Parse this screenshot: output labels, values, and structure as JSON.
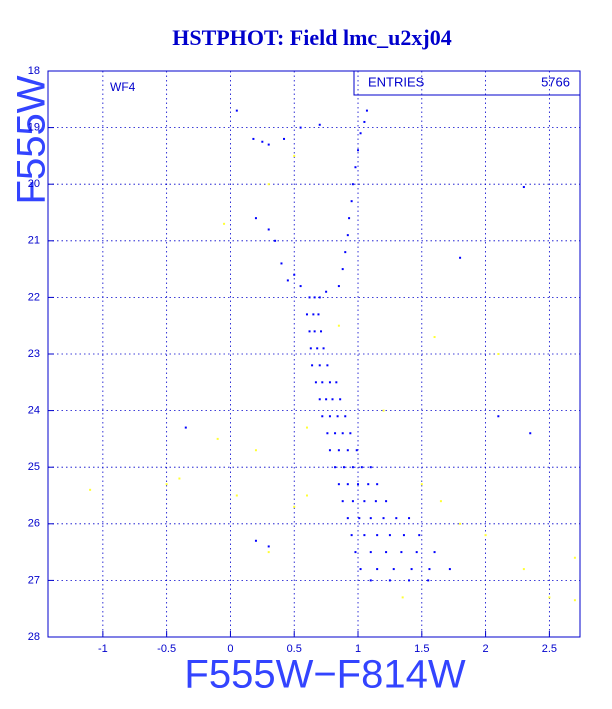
{
  "chart_data": {
    "type": "scatter",
    "title": "HSTPHOT: Field lmc_u2xj04",
    "panel_label": "WF4",
    "stats_label": "ENTRIES",
    "stats_value": 5766,
    "x_label": "F555W−F814W",
    "y_label": "F555W",
    "xlim": [
      -1.43,
      2.74
    ],
    "ylim": [
      28,
      18
    ],
    "xticks": [
      -1,
      -0.5,
      0,
      0.5,
      1,
      1.5,
      2,
      2.5
    ],
    "yticks": [
      18,
      19,
      20,
      21,
      22,
      23,
      24,
      25,
      26,
      27,
      28
    ],
    "grid": true,
    "series": [
      {
        "color": "#0000ff",
        "x": [
          0.62,
          0.66,
          0.7,
          0.6,
          0.65,
          0.69,
          0.62,
          0.66,
          0.71,
          0.63,
          0.68,
          0.73,
          0.64,
          0.7,
          0.76,
          0.67,
          0.72,
          0.78,
          0.83,
          0.7,
          0.75,
          0.8,
          0.86,
          0.72,
          0.78,
          0.84,
          0.9,
          0.76,
          0.82,
          0.88,
          0.94,
          0.78,
          0.85,
          0.92,
          0.99,
          0.82,
          0.89,
          0.96,
          1.03,
          1.1,
          0.85,
          0.92,
          1.0,
          1.08,
          1.15,
          0.88,
          0.96,
          1.05,
          1.14,
          1.22,
          0.92,
          1.01,
          1.1,
          1.2,
          1.3,
          1.4,
          0.95,
          1.05,
          1.15,
          1.25,
          1.36,
          1.48,
          0.98,
          1.1,
          1.22,
          1.34,
          1.46,
          1.6,
          1.02,
          1.15,
          1.28,
          1.42,
          1.56,
          1.72,
          1.1,
          1.25,
          1.4,
          1.55,
          0.55,
          0.5,
          0.45,
          0.75,
          0.85,
          0.88,
          0.9,
          0.92,
          0.93,
          0.95,
          0.96,
          0.98,
          1.0,
          1.02,
          1.05,
          1.07,
          0.4,
          0.35,
          0.3,
          0.18,
          0.25,
          0.3,
          0.42,
          0.55,
          0.7,
          0.05,
          -0.35,
          0.2,
          0.3,
          2.3,
          2.1,
          2.35,
          1.8,
          0.2
        ],
        "values": [
          22.0,
          22.0,
          22.0,
          22.3,
          22.3,
          22.3,
          22.6,
          22.6,
          22.6,
          22.9,
          22.9,
          22.9,
          23.2,
          23.2,
          23.2,
          23.5,
          23.5,
          23.5,
          23.5,
          23.8,
          23.8,
          23.8,
          23.8,
          24.1,
          24.1,
          24.1,
          24.1,
          24.4,
          24.4,
          24.4,
          24.4,
          24.7,
          24.7,
          24.7,
          24.7,
          25.0,
          25.0,
          25.0,
          25.0,
          25.0,
          25.3,
          25.3,
          25.3,
          25.3,
          25.3,
          25.6,
          25.6,
          25.6,
          25.6,
          25.6,
          25.9,
          25.9,
          25.9,
          25.9,
          25.9,
          25.9,
          26.2,
          26.2,
          26.2,
          26.2,
          26.2,
          26.2,
          26.5,
          26.5,
          26.5,
          26.5,
          26.5,
          26.5,
          26.8,
          26.8,
          26.8,
          26.8,
          26.8,
          26.8,
          27.0,
          27.0,
          27.0,
          27.0,
          21.8,
          21.6,
          21.7,
          21.9,
          21.8,
          21.5,
          21.2,
          20.9,
          20.6,
          20.3,
          20.0,
          19.7,
          19.4,
          19.1,
          18.9,
          18.7,
          21.4,
          21.0,
          20.8,
          19.2,
          19.25,
          19.3,
          19.2,
          19.0,
          18.95,
          18.7,
          24.3,
          26.3,
          26.4,
          20.05,
          24.1,
          24.4,
          21.3,
          20.6
        ]
      },
      {
        "color": "#ffff33",
        "x": [
          -1.1,
          -0.5,
          -0.4,
          0.05,
          0.3,
          0.5,
          0.6,
          1.2,
          1.5,
          1.8,
          2.0,
          2.3,
          2.5,
          2.7,
          2.1,
          1.6,
          0.3,
          0.5,
          -0.05,
          0.85,
          2.7,
          1.35,
          0.2,
          -0.1,
          0.6,
          1.65
        ],
        "values": [
          25.4,
          25.3,
          25.2,
          25.5,
          26.5,
          25.7,
          25.5,
          24.0,
          25.3,
          26.0,
          26.2,
          26.8,
          27.3,
          26.6,
          23.0,
          22.7,
          20.0,
          19.5,
          20.7,
          22.5,
          27.35,
          27.3,
          24.7,
          24.5,
          24.3,
          25.6
        ]
      }
    ]
  }
}
